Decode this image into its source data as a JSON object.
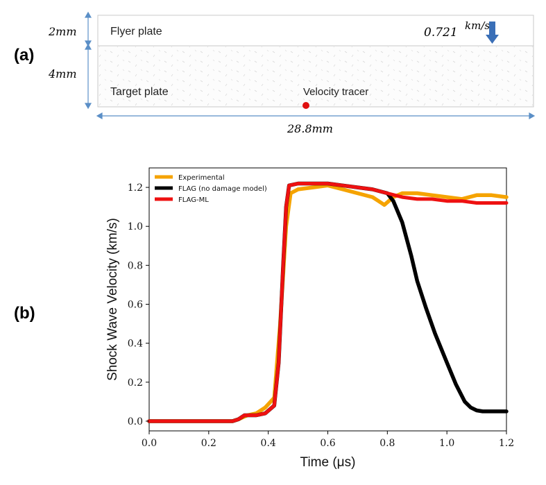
{
  "panel_labels": {
    "a": "(a)",
    "b": "(b)"
  },
  "diagram": {
    "flyer_thickness": "2mm",
    "target_thickness": "4mm",
    "width_label": "28.8mm",
    "flyer_label": "Flyer plate",
    "target_label": "Target plate",
    "velocity_value": "0.721",
    "velocity_unit": "km/s",
    "tracer_label": "Velocity tracer",
    "arrow_color": "#3a6fb7",
    "tracer_color": "#e01010"
  },
  "chart_data": {
    "type": "line",
    "title": "",
    "xlabel": "Time (μs)",
    "ylabel": "Shock Wave Velocity (km/s)",
    "xlim": [
      0.0,
      1.2
    ],
    "ylim": [
      -0.05,
      1.3
    ],
    "xticks": [
      "0.0",
      "0.2",
      "0.4",
      "0.6",
      "0.8",
      "1.0",
      "1.2"
    ],
    "yticks": [
      "0.0",
      "0.2",
      "0.4",
      "0.6",
      "0.8",
      "1.0",
      "1.2"
    ],
    "grid": false,
    "legend_position": "top-left",
    "series": [
      {
        "name": "Experimental",
        "color": "#f5a300",
        "x": [
          0.0,
          0.28,
          0.3,
          0.33,
          0.36,
          0.39,
          0.42,
          0.44,
          0.46,
          0.475,
          0.5,
          0.55,
          0.6,
          0.65,
          0.7,
          0.75,
          0.78,
          0.79,
          0.82,
          0.85,
          0.9,
          0.95,
          1.0,
          1.05,
          1.1,
          1.15,
          1.2
        ],
        "y": [
          0.0,
          0.0,
          0.01,
          0.03,
          0.04,
          0.07,
          0.12,
          0.5,
          1.0,
          1.17,
          1.19,
          1.2,
          1.21,
          1.19,
          1.17,
          1.15,
          1.12,
          1.11,
          1.15,
          1.17,
          1.17,
          1.16,
          1.15,
          1.14,
          1.16,
          1.16,
          1.15
        ]
      },
      {
        "name": "FLAG (no damage model)",
        "color": "#000000",
        "x": [
          0.0,
          0.28,
          0.3,
          0.32,
          0.36,
          0.39,
          0.42,
          0.435,
          0.45,
          0.46,
          0.47,
          0.5,
          0.55,
          0.6,
          0.65,
          0.7,
          0.75,
          0.8,
          0.82,
          0.85,
          0.88,
          0.9,
          0.93,
          0.96,
          1.0,
          1.03,
          1.06,
          1.08,
          1.1,
          1.12,
          1.15,
          1.2
        ],
        "y": [
          0.0,
          0.0,
          0.01,
          0.03,
          0.03,
          0.04,
          0.08,
          0.3,
          0.8,
          1.1,
          1.21,
          1.22,
          1.22,
          1.22,
          1.21,
          1.2,
          1.19,
          1.17,
          1.13,
          1.02,
          0.85,
          0.72,
          0.58,
          0.45,
          0.3,
          0.19,
          0.1,
          0.07,
          0.055,
          0.05,
          0.05,
          0.05
        ]
      },
      {
        "name": "FLAG-ML",
        "color": "#ee1111",
        "x": [
          0.0,
          0.28,
          0.3,
          0.32,
          0.36,
          0.39,
          0.42,
          0.435,
          0.45,
          0.46,
          0.47,
          0.5,
          0.55,
          0.6,
          0.65,
          0.7,
          0.75,
          0.8,
          0.85,
          0.9,
          0.95,
          1.0,
          1.05,
          1.1,
          1.15,
          1.2
        ],
        "y": [
          0.0,
          0.0,
          0.01,
          0.03,
          0.03,
          0.04,
          0.08,
          0.3,
          0.8,
          1.1,
          1.21,
          1.22,
          1.22,
          1.22,
          1.21,
          1.2,
          1.19,
          1.17,
          1.15,
          1.14,
          1.14,
          1.13,
          1.13,
          1.12,
          1.12,
          1.12
        ]
      }
    ]
  }
}
